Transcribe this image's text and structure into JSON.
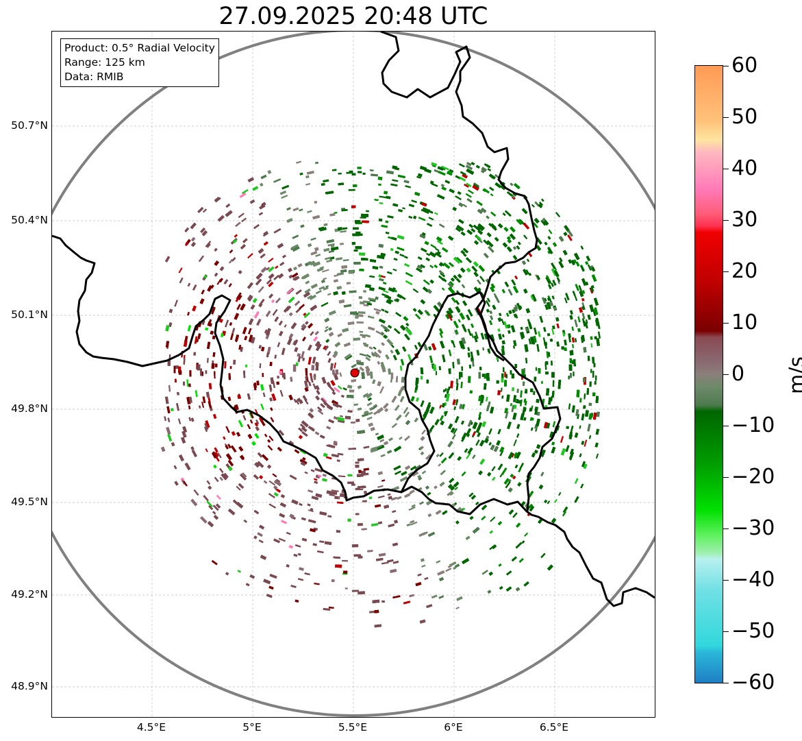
{
  "title": "27.09.2025 20:48 UTC",
  "info": {
    "product": "Product: 0.5° Radial Velocity",
    "range": "Range: 125 km",
    "source": "Data: RMIB"
  },
  "axes": {
    "lat_labels": [
      "50.7°N",
      "50.4°N",
      "50.1°N",
      "49.8°N",
      "49.5°N",
      "49.2°N",
      "48.9°N"
    ],
    "lon_labels": [
      "4.5°E",
      "5°E",
      "5.5°E",
      "6°E",
      "6.5°E"
    ]
  },
  "colorbar": {
    "unit": "m/s",
    "tick_labels": [
      "60",
      "50",
      "40",
      "30",
      "20",
      "10",
      "0",
      "−10",
      "−20",
      "−30",
      "−40",
      "−50",
      "−60"
    ],
    "min": -60,
    "max": 60
  },
  "colors": {
    "approach_strong": "#1f7fc4",
    "approach_cyan": "#30d8dc",
    "approach_green": "#00e000",
    "approach_dark_green": "#006600",
    "zero_grey": "#8a7f7a",
    "receding_dark_red": "#7a0000",
    "receding_red": "#f00000",
    "receding_pink": "#ff7ab8",
    "receding_orange": "#ff9a55",
    "range_ring": "#808080",
    "borders": "#000000",
    "radar_site": "#e00000"
  }
}
